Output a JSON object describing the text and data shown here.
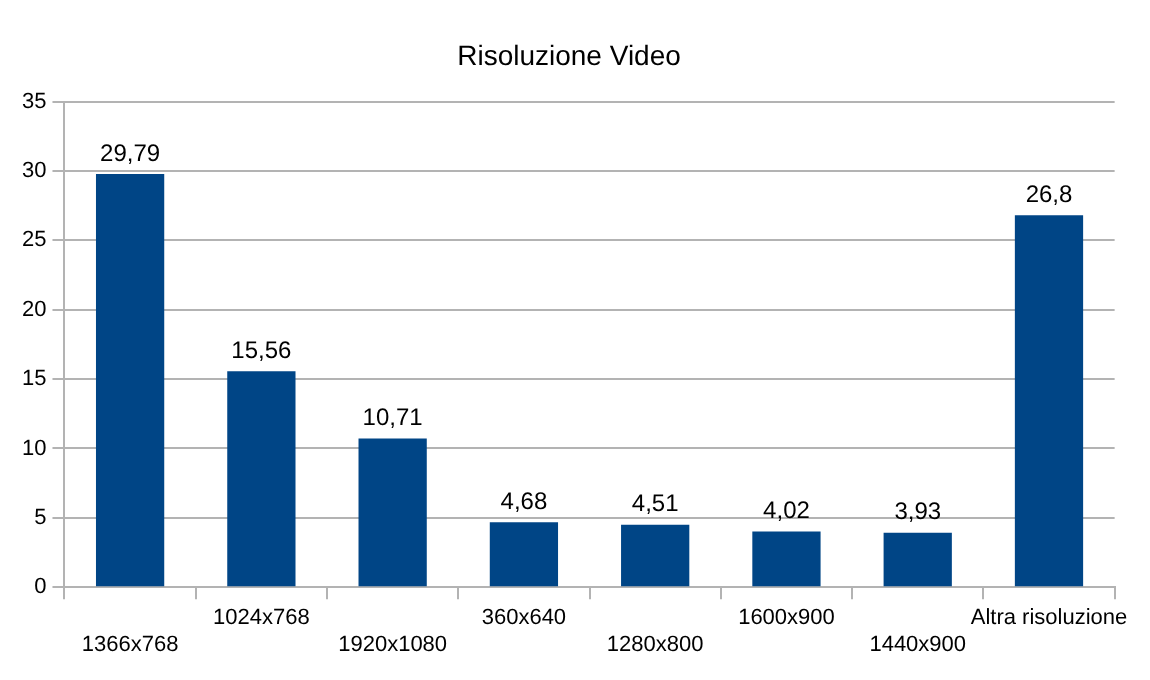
{
  "chart_data": {
    "type": "bar",
    "title": "Risoluzione Video",
    "categories": [
      "1366x768",
      "1024x768",
      "1920x1080",
      "360x640",
      "1280x800",
      "1600x900",
      "1440x900",
      "Altra risoluzione"
    ],
    "values": [
      29.79,
      15.56,
      10.71,
      4.68,
      4.51,
      4.02,
      3.93,
      26.8
    ],
    "value_labels": [
      "29,79",
      "15,56",
      "10,71",
      "4,68",
      "4,51",
      "4,02",
      "3,93",
      "26,8"
    ],
    "color": "#004586",
    "ylim": [
      0,
      35
    ],
    "yticks": [
      0,
      5,
      10,
      15,
      20,
      25,
      30,
      35
    ],
    "grid": "y",
    "legend": false
  }
}
